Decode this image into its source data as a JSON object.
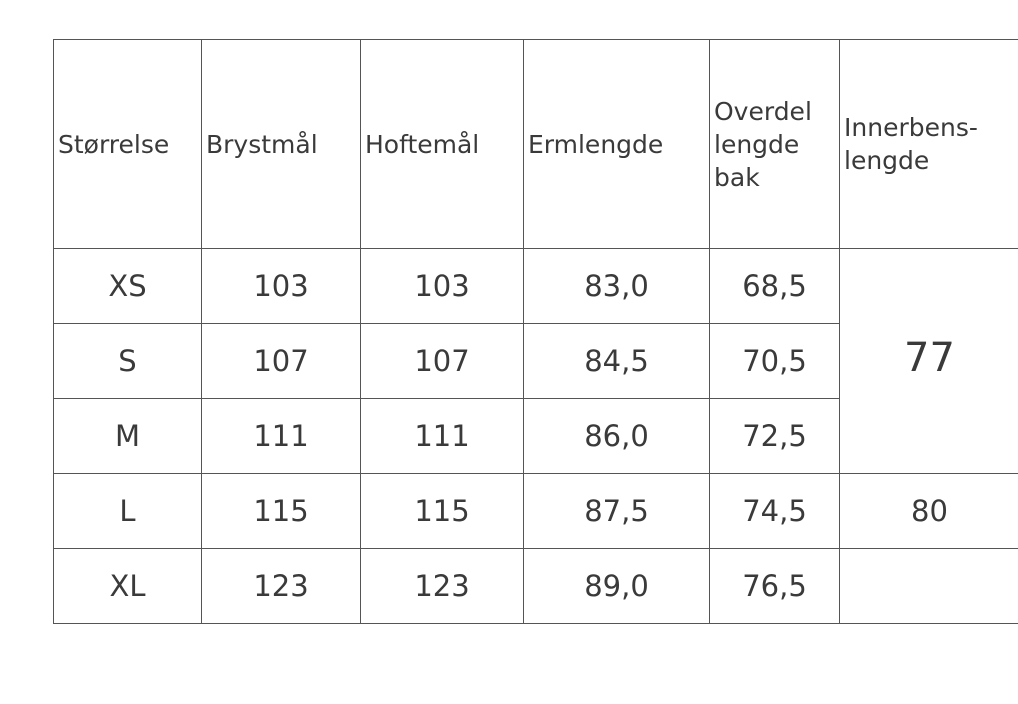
{
  "table": {
    "header": [
      "Størrelse",
      "Brystmål",
      "Hoftemål",
      "Ermlengde",
      "Overdel lengde bak",
      "Innerbens-lengde"
    ],
    "rows": [
      [
        "XS",
        "103",
        "103",
        "83,0",
        "68,5"
      ],
      [
        "S",
        "107",
        "107",
        "84,5",
        "70,5"
      ],
      [
        "M",
        "111",
        "111",
        "86,0",
        "72,5"
      ],
      [
        "L",
        "115",
        "115",
        "87,5",
        "74,5"
      ],
      [
        "XL",
        "123",
        "123",
        "89,0",
        "76,5"
      ]
    ],
    "inner_leg": [
      "77",
      "80"
    ]
  }
}
